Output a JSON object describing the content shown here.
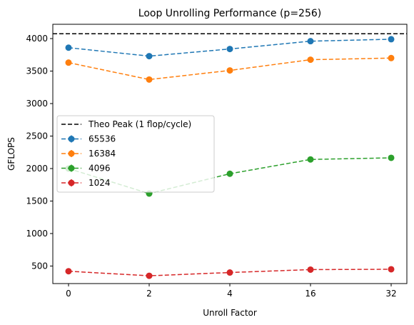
{
  "chart_data": {
    "type": "line",
    "title": "Loop Unrolling Performance (p=256)",
    "xlabel": "Unroll Factor",
    "ylabel": "GFLOPS",
    "categories": [
      "0",
      "2",
      "4",
      "16",
      "32"
    ],
    "yticks": [
      500,
      1000,
      1500,
      2000,
      2500,
      3000,
      3500,
      4000
    ],
    "ylim": [
      230,
      4220
    ],
    "grid": false,
    "legend_placement": "center-left",
    "reference_line": {
      "name": "Theo Peak (1 flop/cycle)",
      "value": 4075,
      "color": "#000000",
      "style": "dashed"
    },
    "series": [
      {
        "name": "65536",
        "color": "#1f77b4",
        "values": [
          3860,
          3730,
          3840,
          3960,
          3990
        ]
      },
      {
        "name": "16384",
        "color": "#ff7f0e",
        "values": [
          3630,
          3370,
          3510,
          3675,
          3700
        ]
      },
      {
        "name": "4096",
        "color": "#2ca02c",
        "values": [
          2000,
          1615,
          1920,
          2140,
          2165
        ]
      },
      {
        "name": "1024",
        "color": "#d62728",
        "values": [
          420,
          350,
          400,
          445,
          450
        ]
      }
    ]
  }
}
